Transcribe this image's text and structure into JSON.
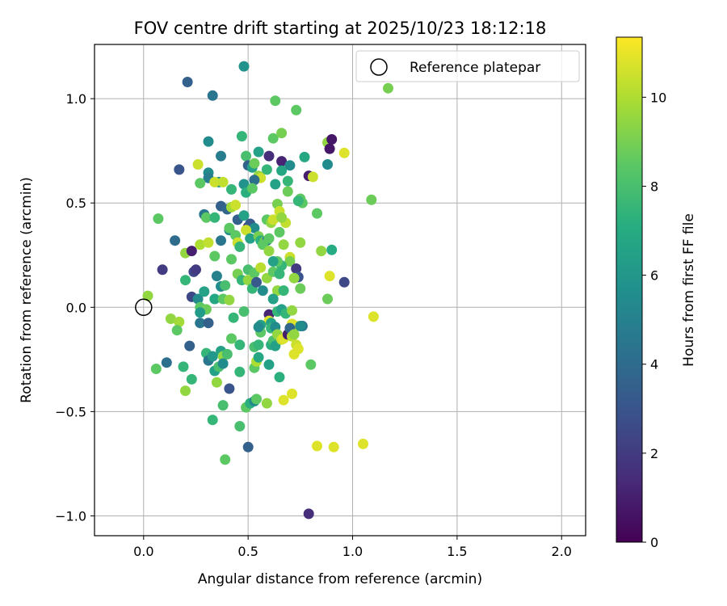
{
  "chart_data": {
    "type": "scatter",
    "title": "FOV centre drift starting at 2025/10/23 18:12:18",
    "xlabel": "Angular distance from reference (arcmin)",
    "ylabel": "Rotation from reference (arcmin)",
    "xlim": [
      -0.235,
      2.115
    ],
    "ylim": [
      -1.095,
      1.26
    ],
    "xticks": [
      0.0,
      0.5,
      1.0,
      1.5,
      2.0
    ],
    "xtick_labels": [
      "0.0",
      "0.5",
      "1.0",
      "1.5",
      "2.0"
    ],
    "yticks": [
      -1.0,
      -0.5,
      0.0,
      0.5,
      1.0
    ],
    "ytick_labels": [
      "−1.0",
      "−0.5",
      "0.0",
      "0.5",
      "1.0"
    ],
    "grid": true,
    "colormap": "viridis",
    "colorbar": {
      "label": "Hours from first FF file",
      "min": 0,
      "max": 11.35,
      "ticks": [
        0,
        2,
        4,
        6,
        8,
        10
      ],
      "tick_labels": [
        "0",
        "2",
        "4",
        "6",
        "8",
        "10"
      ]
    },
    "reference_point": {
      "x": 0.0,
      "y": 0.0
    },
    "legend": {
      "label": "Reference platepar",
      "position": "top-right"
    },
    "points": [
      [
        0.48,
        1.155,
        5.8
      ],
      [
        0.21,
        1.08,
        3.5
      ],
      [
        0.33,
        1.015,
        4.5
      ],
      [
        0.63,
        0.99,
        8.5
      ],
      [
        0.73,
        0.945,
        8.5
      ],
      [
        1.17,
        1.05,
        9.0
      ],
      [
        0.47,
        0.82,
        7.5
      ],
      [
        0.31,
        0.795,
        5.5
      ],
      [
        0.62,
        0.81,
        8.5
      ],
      [
        0.66,
        0.835,
        9.0
      ],
      [
        0.88,
        0.79,
        9.5
      ],
      [
        0.9,
        0.805,
        0.7
      ],
      [
        0.89,
        0.76,
        0.7
      ],
      [
        0.96,
        0.74,
        10.8
      ],
      [
        0.37,
        0.725,
        4.8
      ],
      [
        0.49,
        0.725,
        8.0
      ],
      [
        0.55,
        0.745,
        6.5
      ],
      [
        0.6,
        0.725,
        1.5
      ],
      [
        0.66,
        0.7,
        1.2
      ],
      [
        0.77,
        0.72,
        6.8
      ],
      [
        0.17,
        0.66,
        3.0
      ],
      [
        0.26,
        0.685,
        10.5
      ],
      [
        0.31,
        0.645,
        5.5
      ],
      [
        0.31,
        0.62,
        4.8
      ],
      [
        0.36,
        0.6,
        5.5
      ],
      [
        0.34,
        0.6,
        10.5
      ],
      [
        0.38,
        0.6,
        10.3
      ],
      [
        0.27,
        0.595,
        8.5
      ],
      [
        0.5,
        0.68,
        3.5
      ],
      [
        0.52,
        0.67,
        6.5
      ],
      [
        0.53,
        0.69,
        8.8
      ],
      [
        0.55,
        0.63,
        9.5
      ],
      [
        0.56,
        0.62,
        10.5
      ],
      [
        0.53,
        0.61,
        4.2
      ],
      [
        0.59,
        0.66,
        7.5
      ],
      [
        0.66,
        0.655,
        6.8
      ],
      [
        0.7,
        0.68,
        5.5
      ],
      [
        0.79,
        0.63,
        1.0
      ],
      [
        0.81,
        0.625,
        10.5
      ],
      [
        0.88,
        0.685,
        5.5
      ],
      [
        0.48,
        0.59,
        5.8
      ],
      [
        0.63,
        0.59,
        6.5
      ],
      [
        0.69,
        0.605,
        7.5
      ],
      [
        0.42,
        0.565,
        7.5
      ],
      [
        0.49,
        0.55,
        7.2
      ],
      [
        0.52,
        0.57,
        8.5
      ],
      [
        0.69,
        0.555,
        8.8
      ],
      [
        0.75,
        0.52,
        8.5
      ],
      [
        0.76,
        0.5,
        8.5
      ],
      [
        0.74,
        0.51,
        7.5
      ],
      [
        1.09,
        0.515,
        8.8
      ],
      [
        0.07,
        0.425,
        8.5
      ],
      [
        0.29,
        0.445,
        4.5
      ],
      [
        0.3,
        0.43,
        8.5
      ],
      [
        0.34,
        0.43,
        7.5
      ],
      [
        0.37,
        0.485,
        3.5
      ],
      [
        0.4,
        0.47,
        3.8
      ],
      [
        0.42,
        0.48,
        9.8
      ],
      [
        0.44,
        0.49,
        10.5
      ],
      [
        0.45,
        0.42,
        3.5
      ],
      [
        0.48,
        0.44,
        6.5
      ],
      [
        0.5,
        0.385,
        1.2
      ],
      [
        0.51,
        0.4,
        3.3
      ],
      [
        0.53,
        0.38,
        5.5
      ],
      [
        0.59,
        0.42,
        8.5
      ],
      [
        0.61,
        0.405,
        9.5
      ],
      [
        0.62,
        0.42,
        10.5
      ],
      [
        0.64,
        0.495,
        9.0
      ],
      [
        0.65,
        0.46,
        10.5
      ],
      [
        0.68,
        0.405,
        10.3
      ],
      [
        0.66,
        0.43,
        9.5
      ],
      [
        0.83,
        0.45,
        8.5
      ],
      [
        0.15,
        0.32,
        4.0
      ],
      [
        0.2,
        0.26,
        9.5
      ],
      [
        0.23,
        0.27,
        1.0
      ],
      [
        0.24,
        0.17,
        2.5
      ],
      [
        0.27,
        0.3,
        10.0
      ],
      [
        0.31,
        0.31,
        10.3
      ],
      [
        0.37,
        0.32,
        4.5
      ],
      [
        0.41,
        0.37,
        5.5
      ],
      [
        0.41,
        0.38,
        8.5
      ],
      [
        0.44,
        0.345,
        8.5
      ],
      [
        0.45,
        0.31,
        10.5
      ],
      [
        0.46,
        0.29,
        7.5
      ],
      [
        0.49,
        0.37,
        10.5
      ],
      [
        0.51,
        0.33,
        6.5
      ],
      [
        0.55,
        0.34,
        9.0
      ],
      [
        0.56,
        0.32,
        7.2
      ],
      [
        0.58,
        0.315,
        9.5
      ],
      [
        0.59,
        0.32,
        5.0
      ],
      [
        0.6,
        0.33,
        8.5
      ],
      [
        0.57,
        0.3,
        8.5
      ],
      [
        0.6,
        0.27,
        9.5
      ],
      [
        0.65,
        0.36,
        8.5
      ],
      [
        0.67,
        0.3,
        9.5
      ],
      [
        0.7,
        0.24,
        10.5
      ],
      [
        0.7,
        0.22,
        9.0
      ],
      [
        0.66,
        0.2,
        7.5
      ],
      [
        0.64,
        0.22,
        8.5
      ],
      [
        0.75,
        0.31,
        9.5
      ],
      [
        0.85,
        0.27,
        9.5
      ],
      [
        0.9,
        0.275,
        7.0
      ],
      [
        0.09,
        0.18,
        2.0
      ],
      [
        0.2,
        0.13,
        7.5
      ],
      [
        0.25,
        0.18,
        2.0
      ],
      [
        0.34,
        0.245,
        8.5
      ],
      [
        0.35,
        0.15,
        5.0
      ],
      [
        0.37,
        0.1,
        5.5
      ],
      [
        0.39,
        0.105,
        8.0
      ],
      [
        0.42,
        0.23,
        8.5
      ],
      [
        0.45,
        0.16,
        9.0
      ],
      [
        0.47,
        0.13,
        7.5
      ],
      [
        0.5,
        0.18,
        8.0
      ],
      [
        0.5,
        0.13,
        9.5
      ],
      [
        0.53,
        0.165,
        8.5
      ],
      [
        0.52,
        0.09,
        7.5
      ],
      [
        0.54,
        0.12,
        3.2
      ],
      [
        0.56,
        0.19,
        10.2
      ],
      [
        0.57,
        0.08,
        5.5
      ],
      [
        0.59,
        0.14,
        9.5
      ],
      [
        0.62,
        0.22,
        6.5
      ],
      [
        0.62,
        0.17,
        8.5
      ],
      [
        0.64,
        0.08,
        9.5
      ],
      [
        0.65,
        0.16,
        7.5
      ],
      [
        0.67,
        0.08,
        7.5
      ],
      [
        0.73,
        0.185,
        2.0
      ],
      [
        0.74,
        0.145,
        3.0
      ],
      [
        0.72,
        0.14,
        9.5
      ],
      [
        0.75,
        0.09,
        8.8
      ],
      [
        0.89,
        0.15,
        10.8
      ],
      [
        0.96,
        0.12,
        2.5
      ],
      [
        0.02,
        0.055,
        9.5
      ],
      [
        0.23,
        0.05,
        2.5
      ],
      [
        0.26,
        0.04,
        5.5
      ],
      [
        0.29,
        0.075,
        6.5
      ],
      [
        0.27,
        0.0,
        8.5
      ],
      [
        0.3,
        -0.01,
        8.8
      ],
      [
        0.34,
        0.04,
        6.8
      ],
      [
        0.38,
        0.04,
        8.5
      ],
      [
        0.41,
        0.035,
        9.5
      ],
      [
        0.62,
        0.04,
        6.5
      ],
      [
        0.88,
        0.04,
        8.8
      ],
      [
        0.13,
        -0.055,
        9.5
      ],
      [
        0.17,
        -0.07,
        9.8
      ],
      [
        0.16,
        -0.11,
        8.5
      ],
      [
        0.27,
        -0.025,
        6.2
      ],
      [
        0.27,
        -0.075,
        4.5
      ],
      [
        0.31,
        -0.075,
        3.5
      ],
      [
        0.43,
        -0.05,
        7.5
      ],
      [
        0.48,
        -0.02,
        8.0
      ],
      [
        0.6,
        -0.035,
        1.2
      ],
      [
        0.64,
        -0.02,
        7.5
      ],
      [
        0.66,
        -0.01,
        6.5
      ],
      [
        0.68,
        -0.03,
        7.5
      ],
      [
        0.71,
        -0.015,
        9.5
      ],
      [
        0.6,
        -0.065,
        10.8
      ],
      [
        0.61,
        -0.075,
        6.5
      ],
      [
        0.71,
        -0.08,
        9.0
      ],
      [
        0.71,
        -0.08,
        10.8
      ],
      [
        0.73,
        -0.09,
        10.8
      ],
      [
        0.56,
        -0.085,
        6.5
      ],
      [
        0.56,
        -0.12,
        8.5
      ],
      [
        0.55,
        -0.095,
        5.5
      ],
      [
        0.61,
        -0.1,
        7.5
      ],
      [
        0.63,
        -0.095,
        5.5
      ],
      [
        0.76,
        -0.09,
        4.5
      ],
      [
        0.75,
        -0.09,
        5.5
      ],
      [
        1.1,
        -0.045,
        10.8
      ],
      [
        0.22,
        -0.185,
        3.5
      ],
      [
        0.42,
        -0.15,
        8.5
      ],
      [
        0.46,
        -0.18,
        7.5
      ],
      [
        0.53,
        -0.19,
        8.0
      ],
      [
        0.55,
        -0.18,
        7.5
      ],
      [
        0.61,
        -0.18,
        7.2
      ],
      [
        0.62,
        -0.16,
        8.0
      ],
      [
        0.63,
        -0.185,
        6.5
      ],
      [
        0.64,
        -0.13,
        9.5
      ],
      [
        0.66,
        -0.155,
        10.5
      ],
      [
        0.67,
        -0.15,
        10.8
      ],
      [
        0.69,
        -0.13,
        1.0
      ],
      [
        0.7,
        -0.1,
        3.8
      ],
      [
        0.71,
        -0.14,
        10.2
      ],
      [
        0.72,
        -0.13,
        9.5
      ],
      [
        0.73,
        -0.18,
        10.5
      ],
      [
        0.72,
        -0.225,
        10.8
      ],
      [
        0.74,
        -0.2,
        10.8
      ],
      [
        0.11,
        -0.265,
        4.2
      ],
      [
        0.06,
        -0.295,
        8.5
      ],
      [
        0.19,
        -0.285,
        7.5
      ],
      [
        0.23,
        -0.345,
        7.5
      ],
      [
        0.3,
        -0.22,
        7.5
      ],
      [
        0.31,
        -0.255,
        4.5
      ],
      [
        0.33,
        -0.235,
        6.0
      ],
      [
        0.34,
        -0.305,
        6.5
      ],
      [
        0.36,
        -0.285,
        8.0
      ],
      [
        0.37,
        -0.21,
        6.5
      ],
      [
        0.38,
        -0.235,
        9.5
      ],
      [
        0.38,
        -0.27,
        5.5
      ],
      [
        0.4,
        -0.225,
        8.0
      ],
      [
        0.46,
        -0.31,
        7.5
      ],
      [
        0.53,
        -0.29,
        8.5
      ],
      [
        0.54,
        -0.26,
        10.0
      ],
      [
        0.55,
        -0.24,
        6.8
      ],
      [
        0.6,
        -0.275,
        6.5
      ],
      [
        0.65,
        -0.335,
        7.2
      ],
      [
        0.71,
        -0.415,
        10.8
      ],
      [
        0.8,
        -0.275,
        8.5
      ],
      [
        0.2,
        -0.4,
        9.5
      ],
      [
        0.35,
        -0.36,
        9.5
      ],
      [
        0.41,
        -0.39,
        3.0
      ],
      [
        0.33,
        -0.54,
        7.5
      ],
      [
        0.38,
        -0.47,
        8.0
      ],
      [
        0.46,
        -0.57,
        8.0
      ],
      [
        0.49,
        -0.48,
        8.5
      ],
      [
        0.51,
        -0.46,
        7.2
      ],
      [
        0.53,
        -0.45,
        5.5
      ],
      [
        0.54,
        -0.44,
        8.5
      ],
      [
        0.59,
        -0.46,
        9.5
      ],
      [
        0.67,
        -0.445,
        10.8
      ],
      [
        0.5,
        -0.67,
        3.5
      ],
      [
        0.39,
        -0.73,
        8.5
      ],
      [
        0.83,
        -0.665,
        10.8
      ],
      [
        0.91,
        -0.67,
        10.8
      ],
      [
        1.05,
        -0.655,
        10.8
      ],
      [
        0.79,
        -0.99,
        1.5
      ]
    ]
  }
}
